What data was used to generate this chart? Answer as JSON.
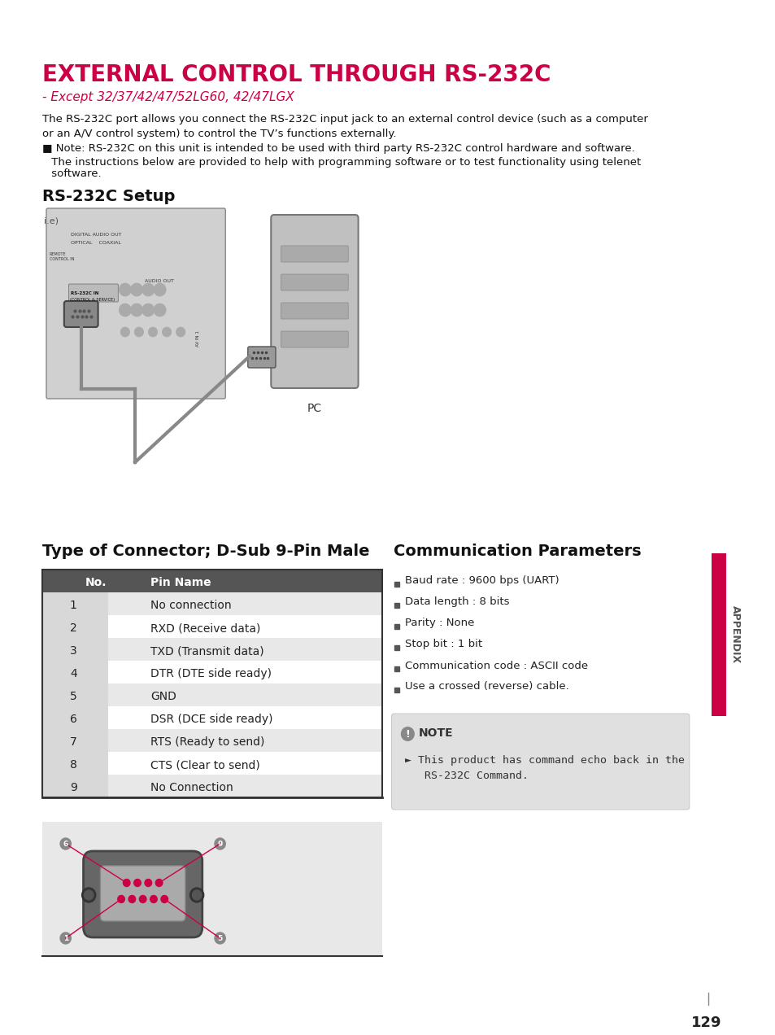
{
  "title": "EXTERNAL CONTROL THROUGH RS-232C",
  "subtitle": "- Except 32/37/42/47/52LG60, 42/47LGX",
  "body_text1": "The RS-232C port allows you connect the RS-232C input jack to an external control device (such as a computer\nor an A/V control system) to control the TV’s functions externally.",
  "note1": "■ Note: RS-232C on this unit is intended to be used with third party RS-232C control hardware and software.",
  "note1b": " The instructions below are provided to help with programming software or to test functionality using telenet\n software.",
  "setup_title": "RS-232C Setup",
  "connector_title": "Type of Connector; D-Sub 9-Pin Male",
  "comm_title": "Communication Parameters",
  "table_header": [
    "No.",
    "Pin Name"
  ],
  "table_rows": [
    [
      "1",
      "No connection"
    ],
    [
      "2",
      "RXD (Receive data)"
    ],
    [
      "3",
      "TXD (Transmit data)"
    ],
    [
      "4",
      "DTR (DTE side ready)"
    ],
    [
      "5",
      "GND"
    ],
    [
      "6",
      "DSR (DCE side ready)"
    ],
    [
      "7",
      "RTS (Ready to send)"
    ],
    [
      "8",
      "CTS (Clear to send)"
    ],
    [
      "9",
      "No Connection"
    ]
  ],
  "comm_items": [
    "Baud rate : 9600 bps (UART)",
    "Data length : 8 bits",
    "Parity : None",
    "Stop bit : 1 bit",
    "Communication code : ASCII code",
    "Use a crossed (reverse) cable."
  ],
  "note_box_title": "NOTE",
  "note_box_text": "► This product has command echo back in the\n   RS-232C Command.",
  "page_number": "129",
  "appendix_text": "APPENDIX",
  "title_color": "#cc0044",
  "subtitle_color": "#cc0044",
  "header_bg": "#555555",
  "header_fg": "#ffffff",
  "row_alt_bg": "#e8e8e8",
  "note_bg": "#e0e0e0",
  "connector_bg": "#e0e0e0",
  "appendix_bar_color": "#cc0044",
  "bg_color": "#ffffff",
  "body_font_size": 9.5,
  "title_font_size": 20,
  "subtitle_font_size": 11,
  "section_title_font_size": 14,
  "table_font_size": 10
}
